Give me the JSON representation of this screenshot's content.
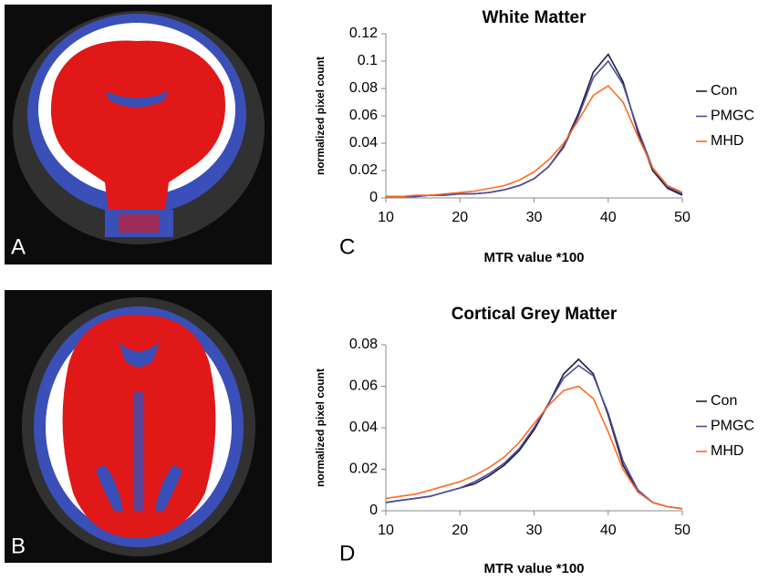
{
  "panel_labels": [
    "A",
    "B",
    "C",
    "D"
  ],
  "chart_data": [
    {
      "type": "line",
      "title": "White Matter",
      "x_label": "MTR value *100",
      "y_label": "normalized pixel count",
      "x": [
        10,
        12,
        14,
        16,
        18,
        20,
        22,
        24,
        26,
        28,
        30,
        32,
        34,
        36,
        38,
        40,
        42,
        44,
        46,
        48,
        50
      ],
      "series": [
        {
          "name": "Con",
          "color": "#1c1c3c",
          "values": [
            0.001,
            0.001,
            0.001,
            0.002,
            0.002,
            0.003,
            0.003,
            0.004,
            0.006,
            0.009,
            0.014,
            0.023,
            0.038,
            0.062,
            0.092,
            0.105,
            0.085,
            0.048,
            0.02,
            0.007,
            0.002
          ]
        },
        {
          "name": "PMGC",
          "color": "#4b4b9b",
          "values": [
            0.001,
            0.001,
            0.001,
            0.002,
            0.002,
            0.003,
            0.003,
            0.004,
            0.006,
            0.009,
            0.014,
            0.023,
            0.037,
            0.06,
            0.088,
            0.1,
            0.083,
            0.05,
            0.022,
            0.008,
            0.003
          ]
        },
        {
          "name": "MHD",
          "color": "#ff6a22",
          "values": [
            0.001,
            0.001,
            0.002,
            0.002,
            0.003,
            0.004,
            0.005,
            0.007,
            0.009,
            0.013,
            0.019,
            0.028,
            0.04,
            0.057,
            0.075,
            0.082,
            0.07,
            0.045,
            0.022,
            0.009,
            0.004
          ]
        }
      ],
      "xlim": [
        10,
        50
      ],
      "xticks": [
        10,
        20,
        30,
        40,
        50
      ],
      "ylim": [
        0,
        0.12
      ],
      "yticks": [
        0,
        0.02,
        0.04,
        0.06,
        0.08,
        0.1,
        0.12
      ],
      "grid": false,
      "legend": "right"
    },
    {
      "type": "line",
      "title": "Cortical Grey Matter",
      "x_label": "MTR value *100",
      "y_label": "normalized pixel count",
      "x": [
        10,
        12,
        14,
        16,
        18,
        20,
        22,
        24,
        26,
        28,
        30,
        32,
        34,
        36,
        38,
        40,
        42,
        44,
        46,
        48,
        50
      ],
      "series": [
        {
          "name": "Con",
          "color": "#1c1c3c",
          "values": [
            0.004,
            0.005,
            0.006,
            0.007,
            0.009,
            0.011,
            0.013,
            0.017,
            0.022,
            0.029,
            0.039,
            0.052,
            0.066,
            0.073,
            0.066,
            0.046,
            0.022,
            0.009,
            0.004,
            0.002,
            0.001
          ]
        },
        {
          "name": "PMGC",
          "color": "#4b4b9b",
          "values": [
            0.004,
            0.005,
            0.006,
            0.007,
            0.009,
            0.011,
            0.014,
            0.018,
            0.023,
            0.03,
            0.04,
            0.052,
            0.064,
            0.07,
            0.065,
            0.047,
            0.024,
            0.01,
            0.004,
            0.002,
            0.001
          ]
        },
        {
          "name": "MHD",
          "color": "#ff6a22",
          "values": [
            0.006,
            0.007,
            0.008,
            0.01,
            0.012,
            0.014,
            0.017,
            0.021,
            0.026,
            0.033,
            0.042,
            0.051,
            0.058,
            0.06,
            0.054,
            0.038,
            0.02,
            0.009,
            0.004,
            0.002,
            0.001
          ]
        }
      ],
      "xlim": [
        10,
        50
      ],
      "xticks": [
        10,
        20,
        30,
        40,
        50
      ],
      "ylim": [
        0,
        0.08
      ],
      "yticks": [
        0,
        0.02,
        0.04,
        0.06,
        0.08
      ],
      "grid": false,
      "legend": "right"
    }
  ]
}
